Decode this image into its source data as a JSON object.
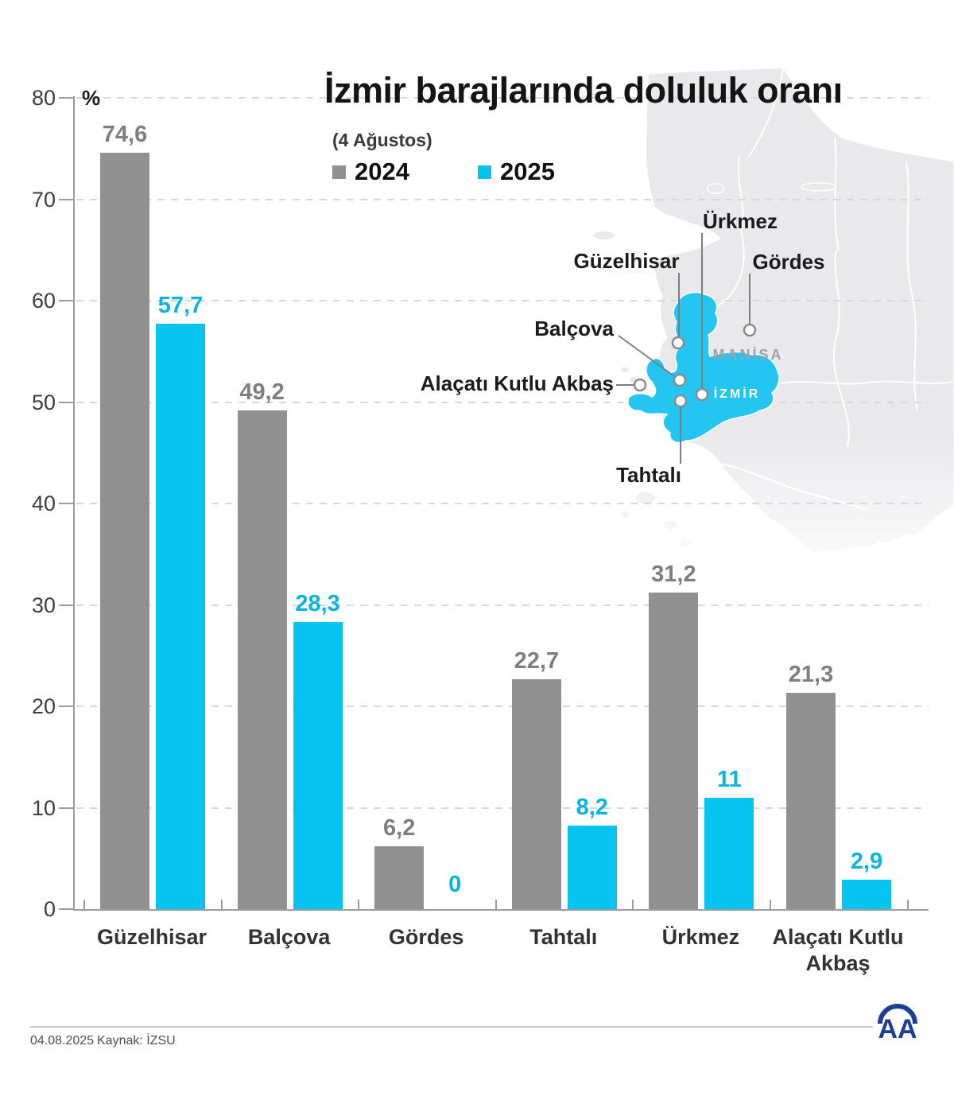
{
  "title": "İzmir barajlarında doluluk oranı",
  "subtitle": "(4 Ağustos)",
  "chart_data": {
    "type": "bar",
    "categories": [
      "Güzelhisar",
      "Balçova",
      "Gördes",
      "Tahtalı",
      "Ürkmez",
      "Alaçatı Kutlu Akbaş"
    ],
    "series": [
      {
        "name": "2024",
        "color": "#919191",
        "label_color": "#7e7e7e",
        "values": [
          74.6,
          49.2,
          6.2,
          22.7,
          31.2,
          21.3
        ],
        "labels": [
          "74,6",
          "49,2",
          "6,2",
          "22,7",
          "31,2",
          "21,3"
        ]
      },
      {
        "name": "2025",
        "color": "#07c3f0",
        "label_color": "#0ab4e2",
        "values": [
          57.7,
          28.3,
          0,
          8.2,
          11,
          2.9
        ],
        "labels": [
          "57,7",
          "28,3",
          "0",
          "8,2",
          "11",
          "2,9"
        ]
      }
    ],
    "ylabel": "%",
    "ylim": [
      0,
      80
    ],
    "yticks": [
      0,
      10,
      20,
      30,
      40,
      50,
      60,
      70,
      80
    ],
    "grid": "dashed-horizontal",
    "legend_position": "top-left"
  },
  "map": {
    "dams": [
      "Ürkmez",
      "Güzelhisar",
      "Gördes",
      "Balçova",
      "Alaçatı Kutlu Akbaş",
      "Tahtalı"
    ],
    "cities": [
      "MANİSA",
      "İZMİR"
    ],
    "highlight_color": "#24c5f1",
    "land_color": "#e9e9ec"
  },
  "footer": {
    "date": "04.08.2025",
    "source": "Kaynak: İZSU",
    "logo": "AA"
  }
}
